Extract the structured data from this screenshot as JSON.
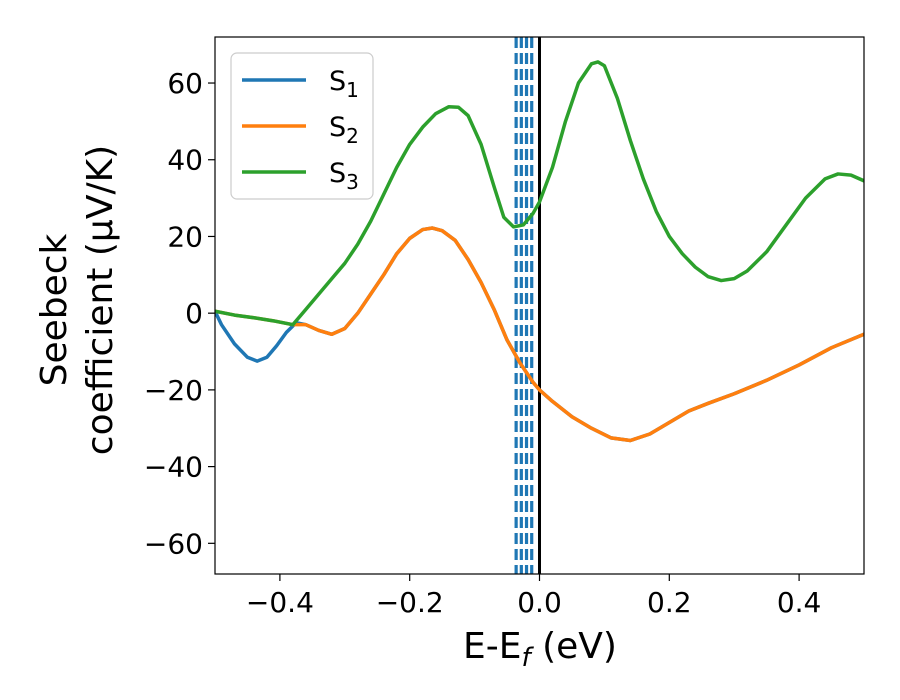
{
  "chart_data": {
    "type": "line",
    "xlabel": {
      "main": "E-E",
      "sub": "f",
      "unit": " (eV)"
    },
    "ylabel": {
      "line1": "Seebeck",
      "line2": "coefficient  (μV/K)"
    },
    "xlim": [
      -0.5,
      0.5
    ],
    "ylim": [
      -68,
      72
    ],
    "xticks": [
      -0.4,
      -0.2,
      0.0,
      0.2,
      0.4
    ],
    "xtick_labels": [
      "−0.4",
      "−0.2",
      "0.0",
      "0.2",
      "0.4"
    ],
    "yticks": [
      -60,
      -40,
      -20,
      0,
      20,
      40,
      60
    ],
    "ytick_labels": [
      "−60",
      "−40",
      "−20",
      "0",
      "20",
      "40",
      "60"
    ],
    "grid": false,
    "legend_placement": "top-left",
    "vlines": [
      {
        "x": -0.036,
        "style": "dashed",
        "color": "#1f77b4"
      },
      {
        "x": -0.028,
        "style": "dashed",
        "color": "#1f77b4"
      },
      {
        "x": -0.02,
        "style": "dashed",
        "color": "#1f77b4"
      },
      {
        "x": -0.012,
        "style": "dashed",
        "color": "#1f77b4"
      },
      {
        "x": 0.0,
        "style": "solid",
        "color": "#000000"
      }
    ],
    "series": [
      {
        "name": "S",
        "sub": "1",
        "color": "#1f77b4",
        "points": [
          [
            -0.5,
            0.5
          ],
          [
            -0.49,
            -3
          ],
          [
            -0.47,
            -8
          ],
          [
            -0.45,
            -11.5
          ],
          [
            -0.435,
            -12.5
          ],
          [
            -0.42,
            -11.5
          ],
          [
            -0.405,
            -8.5
          ],
          [
            -0.39,
            -5
          ],
          [
            -0.375,
            -2.5
          ],
          [
            -0.36,
            -3
          ],
          [
            -0.34,
            -4.5
          ],
          [
            -0.32,
            -5.5
          ],
          [
            -0.3,
            -4
          ],
          [
            -0.28,
            0
          ],
          [
            -0.26,
            5
          ],
          [
            -0.24,
            10
          ],
          [
            -0.22,
            15.5
          ],
          [
            -0.2,
            19.5
          ],
          [
            -0.18,
            21.8
          ],
          [
            -0.165,
            22.2
          ],
          [
            -0.15,
            21.5
          ],
          [
            -0.13,
            19
          ],
          [
            -0.11,
            14
          ],
          [
            -0.09,
            8
          ],
          [
            -0.07,
            1
          ],
          [
            -0.05,
            -7
          ],
          [
            -0.03,
            -13
          ],
          [
            -0.01,
            -18
          ],
          [
            0.0,
            -20
          ],
          [
            0.02,
            -23
          ],
          [
            0.05,
            -27
          ],
          [
            0.08,
            -30
          ],
          [
            0.11,
            -32.5
          ],
          [
            0.14,
            -33.2
          ],
          [
            0.17,
            -31.5
          ],
          [
            0.2,
            -28.5
          ],
          [
            0.23,
            -25.5
          ],
          [
            0.26,
            -23.5
          ],
          [
            0.3,
            -21
          ],
          [
            0.35,
            -17.5
          ],
          [
            0.4,
            -13.5
          ],
          [
            0.45,
            -9
          ],
          [
            0.5,
            -5.5
          ]
        ]
      },
      {
        "name": "S",
        "sub": "2",
        "color": "#ff7f0e",
        "points": [
          [
            -0.5,
            0.5
          ],
          [
            -0.47,
            -0.5
          ],
          [
            -0.44,
            -1.2
          ],
          [
            -0.41,
            -2
          ],
          [
            -0.38,
            -3
          ],
          [
            -0.36,
            -3
          ],
          [
            -0.34,
            -4.5
          ],
          [
            -0.32,
            -5.5
          ],
          [
            -0.3,
            -4
          ],
          [
            -0.28,
            0
          ],
          [
            -0.26,
            5
          ],
          [
            -0.24,
            10
          ],
          [
            -0.22,
            15.5
          ],
          [
            -0.2,
            19.5
          ],
          [
            -0.18,
            21.8
          ],
          [
            -0.165,
            22.2
          ],
          [
            -0.15,
            21.5
          ],
          [
            -0.13,
            19
          ],
          [
            -0.11,
            14
          ],
          [
            -0.09,
            8
          ],
          [
            -0.07,
            1
          ],
          [
            -0.05,
            -7
          ],
          [
            -0.03,
            -13
          ],
          [
            -0.01,
            -18
          ],
          [
            0.0,
            -20
          ],
          [
            0.02,
            -23
          ],
          [
            0.05,
            -27
          ],
          [
            0.08,
            -30
          ],
          [
            0.11,
            -32.5
          ],
          [
            0.14,
            -33.2
          ],
          [
            0.17,
            -31.5
          ],
          [
            0.2,
            -28.5
          ],
          [
            0.23,
            -25.5
          ],
          [
            0.26,
            -23.5
          ],
          [
            0.3,
            -21
          ],
          [
            0.35,
            -17.5
          ],
          [
            0.4,
            -13.5
          ],
          [
            0.45,
            -9
          ],
          [
            0.5,
            -5.5
          ]
        ]
      },
      {
        "name": "S",
        "sub": "3",
        "color": "#2ca02c",
        "points": [
          [
            -0.5,
            0.5
          ],
          [
            -0.47,
            -0.5
          ],
          [
            -0.44,
            -1.2
          ],
          [
            -0.41,
            -2
          ],
          [
            -0.38,
            -3
          ],
          [
            -0.36,
            1
          ],
          [
            -0.34,
            5
          ],
          [
            -0.32,
            9
          ],
          [
            -0.3,
            13
          ],
          [
            -0.28,
            18
          ],
          [
            -0.26,
            24
          ],
          [
            -0.24,
            31
          ],
          [
            -0.22,
            38
          ],
          [
            -0.2,
            44
          ],
          [
            -0.18,
            48.5
          ],
          [
            -0.16,
            52
          ],
          [
            -0.14,
            53.8
          ],
          [
            -0.125,
            53.7
          ],
          [
            -0.11,
            51.5
          ],
          [
            -0.09,
            44
          ],
          [
            -0.07,
            33
          ],
          [
            -0.055,
            25
          ],
          [
            -0.04,
            22.5
          ],
          [
            -0.025,
            23
          ],
          [
            -0.01,
            26
          ],
          [
            0.0,
            29
          ],
          [
            0.02,
            38
          ],
          [
            0.04,
            50
          ],
          [
            0.06,
            60
          ],
          [
            0.08,
            65
          ],
          [
            0.09,
            65.5
          ],
          [
            0.1,
            64.5
          ],
          [
            0.12,
            56
          ],
          [
            0.14,
            45
          ],
          [
            0.16,
            35
          ],
          [
            0.18,
            26.5
          ],
          [
            0.2,
            20
          ],
          [
            0.22,
            15.5
          ],
          [
            0.24,
            12
          ],
          [
            0.26,
            9.5
          ],
          [
            0.28,
            8.5
          ],
          [
            0.3,
            9
          ],
          [
            0.32,
            11
          ],
          [
            0.35,
            16
          ],
          [
            0.38,
            23
          ],
          [
            0.41,
            30
          ],
          [
            0.44,
            35
          ],
          [
            0.46,
            36.3
          ],
          [
            0.48,
            36
          ],
          [
            0.5,
            34.5
          ]
        ]
      }
    ]
  }
}
